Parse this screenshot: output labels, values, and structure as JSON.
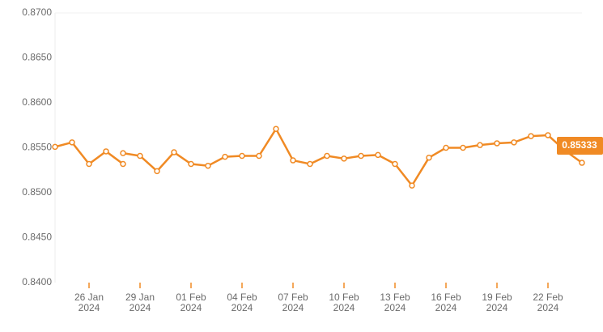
{
  "chart_data": {
    "type": "line",
    "x": [
      "2024-01-24",
      "2024-01-25",
      "2024-01-26",
      "2024-01-27",
      "2024-01-28",
      "2024-01-28",
      "2024-01-28",
      "2024-01-29",
      "2024-01-30",
      "2024-01-31",
      "2024-02-01",
      "2024-02-02",
      "2024-02-03",
      "2024-02-04",
      "2024-02-05",
      "2024-02-06",
      "2024-02-07",
      "2024-02-08",
      "2024-02-09",
      "2024-02-10",
      "2024-02-11",
      "2024-02-12",
      "2024-02-13",
      "2024-02-14",
      "2024-02-15",
      "2024-02-16",
      "2024-02-17",
      "2024-02-18",
      "2024-02-19",
      "2024-02-20",
      "2024-02-21",
      "2024-02-22",
      "2024-02-23",
      "2024-02-24"
    ],
    "series": [
      {
        "color": "#f08a24",
        "values": [
          0.8551,
          0.8556,
          0.8532,
          0.8546,
          0.8532,
          null,
          0.8544,
          0.8541,
          0.8524,
          0.8545,
          0.8532,
          0.853,
          0.854,
          0.8541,
          0.8541,
          0.8571,
          0.8536,
          0.8532,
          0.8541,
          0.8538,
          0.8541,
          0.8542,
          0.8532,
          0.8508,
          0.8539,
          0.855,
          0.855,
          0.8553,
          0.8555,
          0.8556,
          0.8563,
          0.8564,
          0.8547,
          0.85333
        ]
      }
    ],
    "xlim": [
      "2024-01-24",
      "2024-02-24"
    ],
    "xticks": [
      {
        "value": "2024-01-26",
        "label": "26 Jan 2024"
      },
      {
        "value": "2024-01-29",
        "label": "29 Jan 2024"
      },
      {
        "value": "2024-02-01",
        "label": "01 Feb 2024"
      },
      {
        "value": "2024-02-04",
        "label": "04 Feb 2024"
      },
      {
        "value": "2024-02-07",
        "label": "07 Feb 2024"
      },
      {
        "value": "2024-02-10",
        "label": "10 Feb 2024"
      },
      {
        "value": "2024-02-13",
        "label": "13 Feb 2024"
      },
      {
        "value": "2024-02-16",
        "label": "16 Feb 2024"
      },
      {
        "value": "2024-02-19",
        "label": "19 Feb 2024"
      },
      {
        "value": "2024-02-22",
        "label": "22 Feb 2024"
      }
    ],
    "ylim": [
      0.84,
      0.87
    ],
    "yticks": [
      {
        "value": 0.84,
        "label": "0.8400"
      },
      {
        "value": 0.845,
        "label": "0.8450"
      },
      {
        "value": 0.85,
        "label": "0.8500"
      },
      {
        "value": 0.855,
        "label": "0.8550"
      },
      {
        "value": 0.86,
        "label": "0.8600"
      },
      {
        "value": 0.865,
        "label": "0.8650"
      },
      {
        "value": 0.87,
        "label": "0.8700"
      }
    ],
    "grid": false
  }
}
